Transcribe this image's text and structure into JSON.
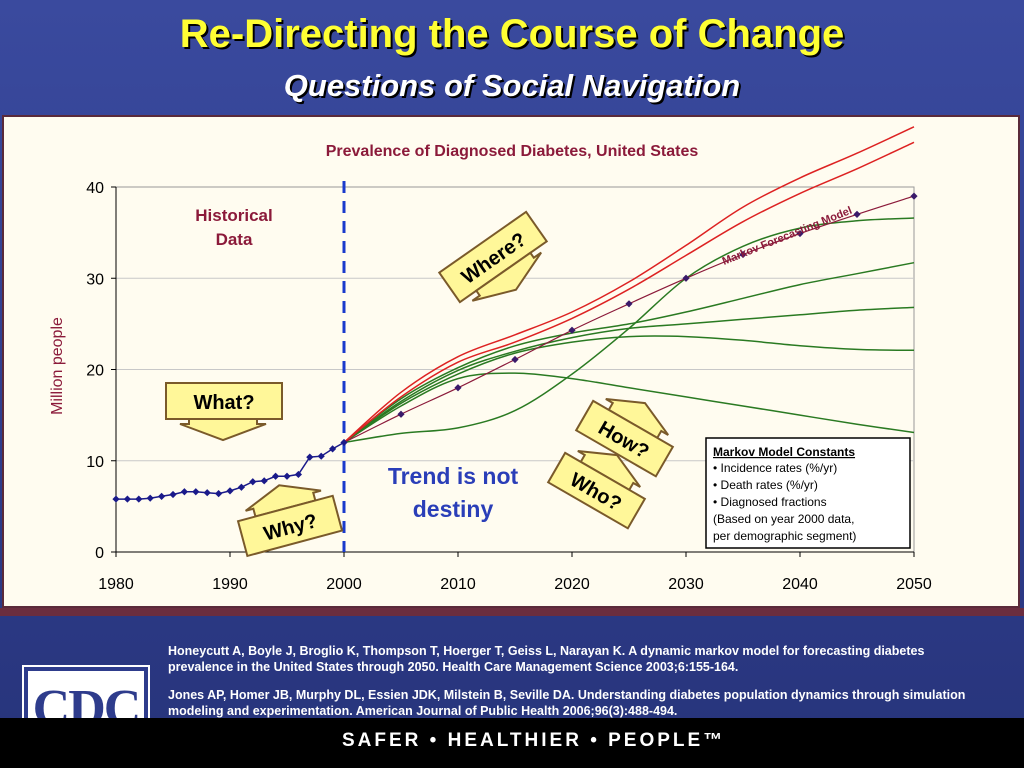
{
  "header": {
    "title": "Re-Directing the Course of Change",
    "subtitle": "Questions of Social Navigation"
  },
  "colors": {
    "title": "#ffff33",
    "background": "#3a4a9e",
    "historical_series": "#1a1a8a",
    "markov_series": "#8b1a3a",
    "red_scenarios": "#dd2222",
    "green_scenarios": "#2a7a22",
    "callout_fill": "#fff799",
    "trend_text": "#2a3eb8"
  },
  "chart_data": {
    "type": "line",
    "title": "Prevalence of Diagnosed Diabetes, United States",
    "xlabel": "",
    "ylabel": "Million people",
    "xlim": [
      1980,
      2050
    ],
    "ylim": [
      0,
      40
    ],
    "x_ticks": [
      1980,
      1990,
      2000,
      2010,
      2020,
      2030,
      2040,
      2050
    ],
    "y_ticks": [
      0,
      10,
      20,
      30,
      40
    ],
    "grid": true,
    "divider_year": 2000,
    "historical": {
      "name": "Historical Data",
      "label_lines": [
        "Historical",
        "Data"
      ],
      "x": [
        1980,
        1981,
        1982,
        1983,
        1984,
        1985,
        1986,
        1987,
        1988,
        1989,
        1990,
        1991,
        1992,
        1993,
        1994,
        1995,
        1996,
        1997,
        1998,
        1999,
        2000
      ],
      "y": [
        5.8,
        5.8,
        5.8,
        5.9,
        6.1,
        6.3,
        6.6,
        6.6,
        6.5,
        6.4,
        6.7,
        7.1,
        7.7,
        7.8,
        8.3,
        8.3,
        8.5,
        10.4,
        10.5,
        11.3,
        12.0
      ]
    },
    "markov": {
      "name": "Markov Forecasting Model",
      "x": [
        2000,
        2005,
        2010,
        2015,
        2020,
        2025,
        2030,
        2035,
        2040,
        2045,
        2050
      ],
      "y": [
        12.0,
        15.1,
        18.0,
        21.1,
        24.3,
        27.2,
        30.0,
        32.6,
        34.9,
        37.0,
        39.0
      ]
    },
    "red_scenarios": [
      {
        "x": [
          2000,
          2005,
          2010,
          2015,
          2020,
          2025,
          2030,
          2035,
          2040,
          2045,
          2050
        ],
        "y": [
          12.0,
          17.5,
          21.4,
          23.8,
          26.3,
          29.6,
          33.6,
          37.8,
          41.0,
          43.7,
          46.6
        ]
      },
      {
        "x": [
          2000,
          2005,
          2010,
          2015,
          2020,
          2025,
          2030,
          2035,
          2040,
          2045,
          2050
        ],
        "y": [
          12.0,
          17.0,
          20.8,
          23.0,
          25.6,
          28.8,
          32.5,
          36.2,
          39.3,
          42.0,
          44.9
        ]
      }
    ],
    "green_scenarios": [
      {
        "x": [
          2000,
          2005,
          2010,
          2015,
          2020,
          2025,
          2030,
          2035,
          2040,
          2045,
          2050
        ],
        "y": [
          12.0,
          16.8,
          20.2,
          22.6,
          24.0,
          25.0,
          26.3,
          27.8,
          29.3,
          30.5,
          31.7
        ]
      },
      {
        "x": [
          2000,
          2005,
          2010,
          2015,
          2020,
          2025,
          2030,
          2035,
          2040,
          2045,
          2050
        ],
        "y": [
          12.0,
          16.5,
          19.9,
          22.0,
          23.5,
          24.5,
          25.0,
          25.5,
          26.0,
          26.5,
          26.8
        ]
      },
      {
        "x": [
          2000,
          2005,
          2010,
          2015,
          2020,
          2025,
          2030,
          2035,
          2040,
          2045,
          2050
        ],
        "y": [
          12.0,
          16.3,
          19.5,
          21.8,
          23.0,
          23.6,
          23.6,
          23.2,
          22.6,
          22.2,
          22.1
        ]
      },
      {
        "x": [
          2000,
          2005,
          2010,
          2015,
          2020,
          2025,
          2030,
          2035,
          2040,
          2045,
          2050
        ],
        "y": [
          12.0,
          16.0,
          19.0,
          19.6,
          19.0,
          18.0,
          17.0,
          16.0,
          15.0,
          14.0,
          13.1
        ]
      },
      {
        "x": [
          2000,
          2005,
          2010,
          2015,
          2020,
          2025,
          2030,
          2035,
          2040,
          2045,
          2050
        ],
        "y": [
          12.0,
          13.0,
          13.6,
          15.5,
          19.5,
          24.5,
          30.0,
          33.5,
          35.5,
          36.3,
          36.6
        ]
      }
    ],
    "callouts": [
      "What?",
      "Why?",
      "Where?",
      "How?",
      "Who?"
    ],
    "annotation": {
      "line1": "Trend is not",
      "line2": "destiny"
    },
    "constants_box": {
      "heading": "Markov Model Constants",
      "items": [
        "• Incidence rates (%/yr)",
        "• Death rates (%/yr)",
        "• Diagnosed fractions"
      ],
      "note_lines": [
        "(Based on year 2000 data,",
        "per demographic segment)"
      ]
    }
  },
  "references": [
    "Honeycutt A, Boyle J, Broglio K, Thompson T, Hoerger T, Geiss L, Narayan K. A dynamic markov model for forecasting diabetes prevalence in the United States through 2050. Health Care Management Science 2003;6:155-164.",
    "Jones AP, Homer JB, Murphy DL, Essien JDK, Milstein B, Seville DA. Understanding diabetes population dynamics through simulation modeling and experimentation. American Journal of Public Health 2006;96(3):488-494."
  ],
  "footer": {
    "logo_text": "CDC",
    "tagline": "SAFER • HEALTHIER • PEOPLE™"
  }
}
